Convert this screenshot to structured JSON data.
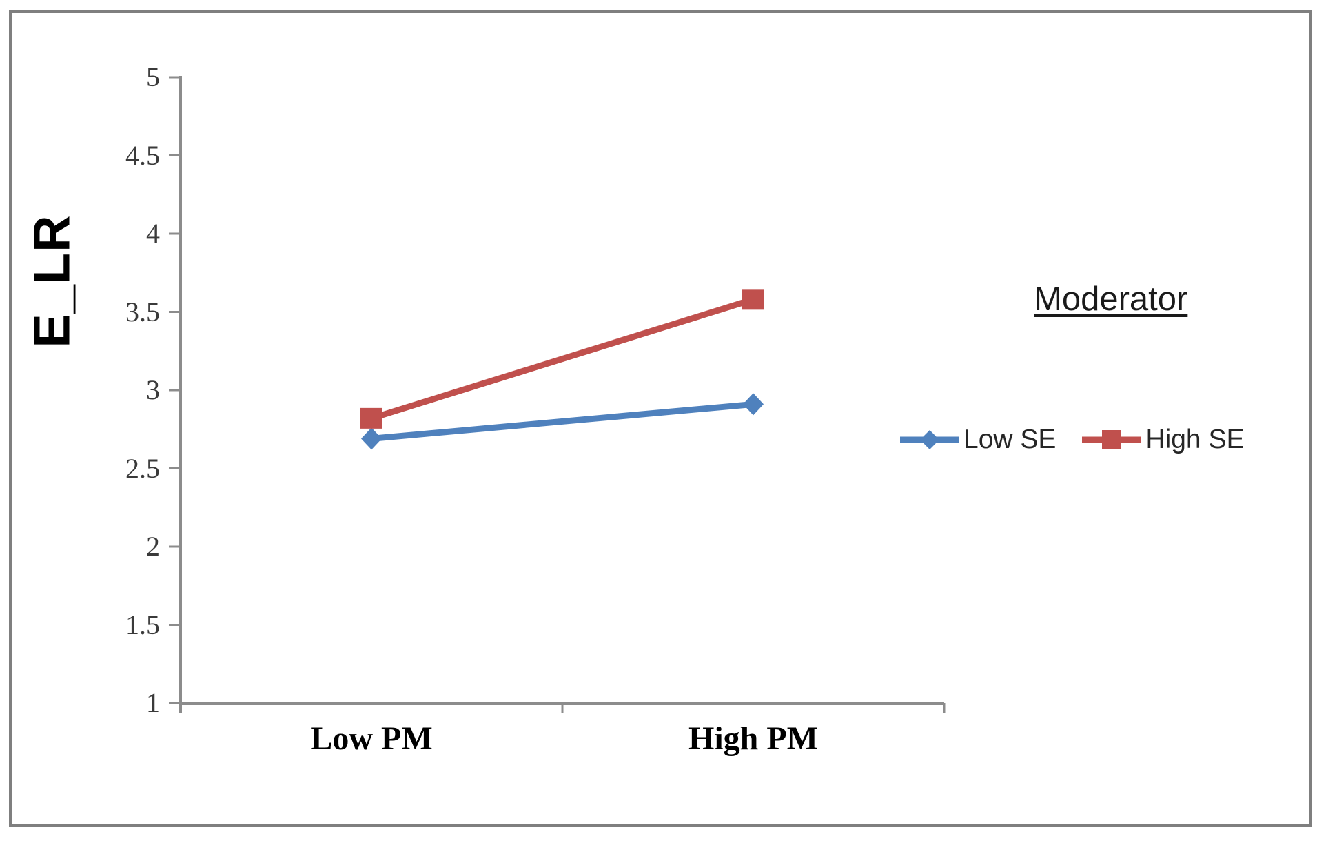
{
  "chart_data": {
    "type": "line",
    "title": "",
    "categories": [
      "Low PM",
      "High PM"
    ],
    "series": [
      {
        "name": "Low SE",
        "values": [
          2.69,
          2.91
        ],
        "color": "#4F81BD",
        "marker": "diamond"
      },
      {
        "name": "High SE",
        "values": [
          2.82,
          3.58
        ],
        "color": "#C0504D",
        "marker": "square"
      }
    ],
    "xlabel": "",
    "ylabel": "E_LR",
    "ylim": [
      1,
      5
    ],
    "yticks": [
      "5",
      "4.5",
      "4",
      "3.5",
      "3",
      "2.5",
      "2",
      "1.5",
      "1"
    ],
    "grid": false,
    "legend_title": "Moderator",
    "legend_position": "right",
    "axis_color": "#8C8C8C",
    "tick_label_color": "#3A3A3A",
    "frame_border_color": "#7F7F7F"
  }
}
